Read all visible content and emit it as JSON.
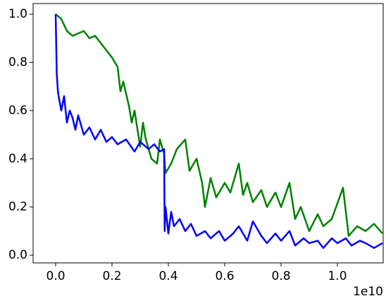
{
  "chart_data": {
    "type": "line",
    "x_offset_label": "1e10",
    "xlim": [
      -0.08,
      1.1625
    ],
    "ylim": [
      -0.032,
      1.044
    ],
    "xticks": [
      {
        "value": 0,
        "label": "0.0"
      },
      {
        "value": 0.2,
        "label": "0.2"
      },
      {
        "value": 0.4,
        "label": "0.4"
      },
      {
        "value": 0.6,
        "label": "0.6"
      },
      {
        "value": 0.8,
        "label": "0.8"
      },
      {
        "value": 1,
        "label": "1.0"
      }
    ],
    "yticks": [
      {
        "value": 0,
        "label": "0.0"
      },
      {
        "value": 0.2,
        "label": "0.2"
      },
      {
        "value": 0.4,
        "label": "0.4"
      },
      {
        "value": 0.6,
        "label": "0.6"
      },
      {
        "value": 0.8,
        "label": "0.8"
      },
      {
        "value": 1,
        "label": "1.0"
      }
    ],
    "grid": false,
    "series": [
      {
        "color": "#008000",
        "x": [
          0,
          0.02,
          0.04,
          0.06,
          0.08,
          0.1,
          0.12,
          0.14,
          0.16,
          0.18,
          0.2,
          0.22,
          0.23,
          0.24,
          0.26,
          0.27,
          0.28,
          0.3,
          0.31,
          0.32,
          0.34,
          0.36,
          0.37,
          0.385,
          0.39,
          0.41,
          0.43,
          0.46,
          0.475,
          0.5,
          0.52,
          0.53,
          0.55,
          0.57,
          0.6,
          0.62,
          0.65,
          0.665,
          0.68,
          0.7,
          0.73,
          0.75,
          0.78,
          0.8,
          0.83,
          0.85,
          0.87,
          0.9,
          0.93,
          0.95,
          0.98,
          1.02,
          1.04,
          1.07,
          1.1,
          1.13,
          1.16
        ],
        "values": [
          1.0,
          0.98,
          0.93,
          0.91,
          0.92,
          0.93,
          0.9,
          0.91,
          0.88,
          0.85,
          0.82,
          0.78,
          0.68,
          0.72,
          0.62,
          0.55,
          0.6,
          0.45,
          0.55,
          0.48,
          0.4,
          0.38,
          0.48,
          0.42,
          0.34,
          0.38,
          0.44,
          0.48,
          0.35,
          0.4,
          0.3,
          0.2,
          0.32,
          0.24,
          0.3,
          0.26,
          0.38,
          0.25,
          0.3,
          0.22,
          0.27,
          0.2,
          0.26,
          0.2,
          0.3,
          0.15,
          0.2,
          0.1,
          0.17,
          0.12,
          0.15,
          0.28,
          0.08,
          0.12,
          0.1,
          0.13,
          0.09
        ]
      },
      {
        "color": "#0000ff",
        "x": [
          0,
          0.004,
          0.008,
          0.012,
          0.02,
          0.03,
          0.04,
          0.05,
          0.06,
          0.07,
          0.08,
          0.1,
          0.12,
          0.14,
          0.16,
          0.18,
          0.2,
          0.22,
          0.25,
          0.28,
          0.3,
          0.33,
          0.35,
          0.37,
          0.385,
          0.387,
          0.39,
          0.4,
          0.41,
          0.42,
          0.44,
          0.46,
          0.48,
          0.5,
          0.53,
          0.55,
          0.58,
          0.6,
          0.63,
          0.65,
          0.68,
          0.7,
          0.73,
          0.75,
          0.78,
          0.8,
          0.83,
          0.85,
          0.88,
          0.9,
          0.93,
          0.95,
          0.98,
          1.0,
          1.03,
          1.05,
          1.08,
          1.1,
          1.13,
          1.16
        ],
        "values": [
          1.0,
          0.75,
          0.68,
          0.65,
          0.6,
          0.66,
          0.55,
          0.6,
          0.57,
          0.52,
          0.58,
          0.5,
          0.53,
          0.48,
          0.52,
          0.47,
          0.49,
          0.46,
          0.48,
          0.43,
          0.47,
          0.44,
          0.46,
          0.43,
          0.44,
          0.1,
          0.2,
          0.09,
          0.18,
          0.12,
          0.15,
          0.1,
          0.13,
          0.08,
          0.1,
          0.07,
          0.1,
          0.06,
          0.09,
          0.12,
          0.06,
          0.14,
          0.08,
          0.05,
          0.09,
          0.06,
          0.1,
          0.04,
          0.07,
          0.05,
          0.06,
          0.03,
          0.07,
          0.05,
          0.07,
          0.04,
          0.06,
          0.05,
          0.03,
          0.05
        ]
      }
    ]
  }
}
